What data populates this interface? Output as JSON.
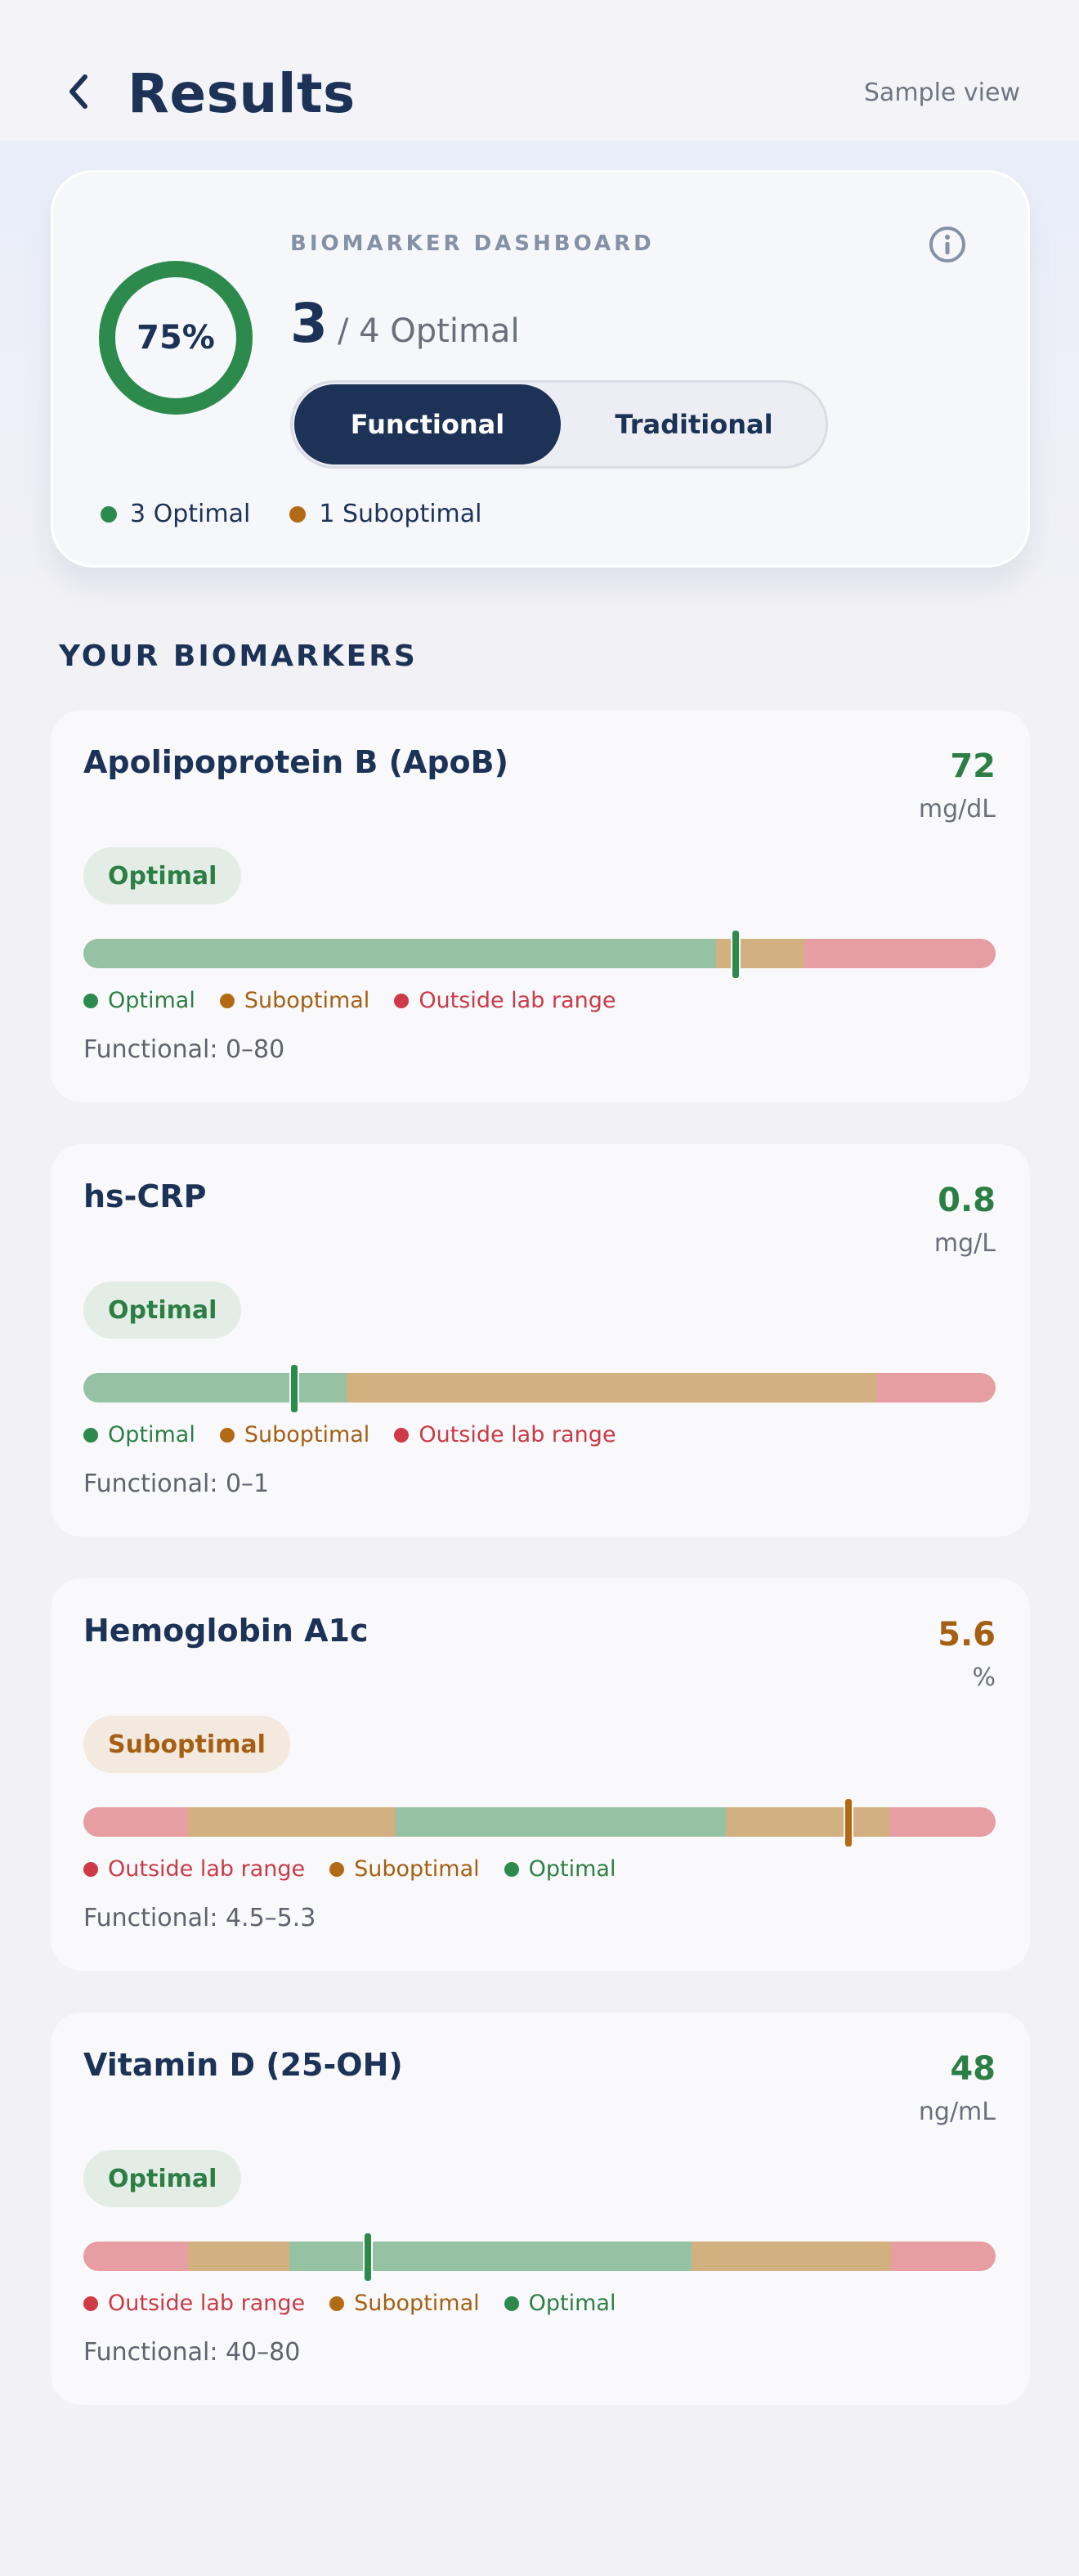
{
  "header": {
    "title": "Results",
    "sample_view": "Sample view"
  },
  "dashboard": {
    "eyebrow": "BIOMARKER DASHBOARD",
    "donut_percent": "75%",
    "donut_fraction": 0.75,
    "score_count": "3",
    "score_rest": "/ 4 Optimal",
    "toggle": {
      "active": "Functional",
      "inactive": "Traditional"
    },
    "summary": {
      "optimal": "3 Optimal",
      "suboptimal": "1 Suboptimal"
    },
    "colors": {
      "optimal": "#2c8a4c",
      "suboptimal": "#b36a14",
      "navy": "#1c3357"
    }
  },
  "section_title": "YOUR BIOMARKERS",
  "biomarkers": [
    {
      "name": "Apolipoprotein B (ApoB)",
      "value": "72",
      "unit": "mg/dL",
      "status": "Optimal",
      "range_text": "Functional: 0–80",
      "legend": [
        "Optimal",
        "Suboptimal",
        "Outside lab range"
      ]
    },
    {
      "name": "hs-CRP",
      "value": "0.8",
      "unit": "mg/L",
      "status": "Optimal",
      "range_text": "Functional: 0–1",
      "legend": [
        "Optimal",
        "Suboptimal",
        "Outside lab range"
      ]
    },
    {
      "name": "Hemoglobin A1c",
      "value": "5.6",
      "unit": "%",
      "status": "Suboptimal",
      "range_text": "Functional: 4.5–5.3",
      "legend": [
        "Outside lab range",
        "Suboptimal",
        "Optimal"
      ]
    },
    {
      "name": "Vitamin D (25-OH)",
      "value": "48",
      "unit": "ng/mL",
      "status": "Optimal",
      "range_text": "Functional: 40–80",
      "legend": [
        "Outside lab range",
        "Suboptimal",
        "Optimal"
      ]
    }
  ]
}
